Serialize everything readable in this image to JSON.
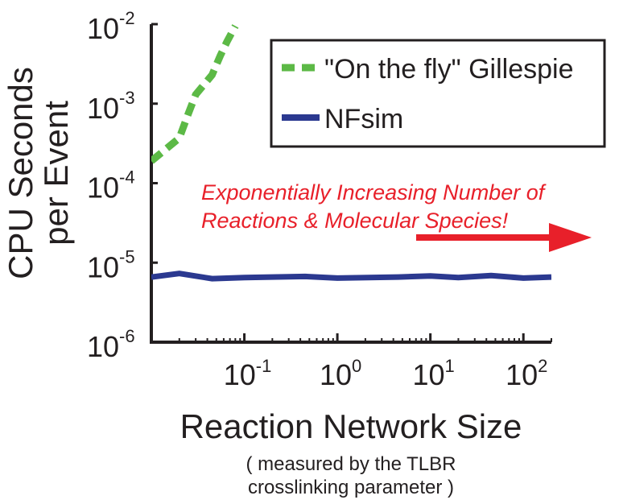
{
  "chart_data": {
    "type": "line",
    "x_scale": "log",
    "y_scale": "log",
    "xlim": [
      0.01,
      200
    ],
    "ylim": [
      1e-06,
      0.01
    ],
    "grid": false,
    "legend_position": "top-right",
    "ylabel_lines": [
      "CPU Seconds",
      "per Event"
    ],
    "xlabel": "Reaction Network Size",
    "x_ticks": [
      {
        "base": "10",
        "exp": "-1",
        "value": 0.1
      },
      {
        "base": "10",
        "exp": "0",
        "value": 1
      },
      {
        "base": "10",
        "exp": "1",
        "value": 10
      },
      {
        "base": "10",
        "exp": "2",
        "value": 100
      }
    ],
    "y_ticks": [
      {
        "base": "10",
        "exp": "-2",
        "value": 0.01
      },
      {
        "base": "10",
        "exp": "-3",
        "value": 0.001
      },
      {
        "base": "10",
        "exp": "-4",
        "value": 0.0001
      },
      {
        "base": "10",
        "exp": "-5",
        "value": 1e-05
      },
      {
        "base": "10",
        "exp": "-6",
        "value": 1e-06
      }
    ],
    "series": [
      {
        "name": "\"On the fly\" Gillespie",
        "color": "#5cb946",
        "style": "dashed",
        "x": [
          0.01,
          0.02,
          0.025,
          0.03,
          0.045,
          0.055,
          0.065,
          0.08
        ],
        "y": [
          0.00019,
          0.00037,
          0.00075,
          0.0013,
          0.0023,
          0.004,
          0.006,
          0.0095
        ]
      },
      {
        "name": "NFsim",
        "color": "#2b3990",
        "style": "solid",
        "x": [
          0.01,
          0.02,
          0.045,
          0.1,
          0.45,
          1,
          4.5,
          10,
          20,
          45,
          100,
          200
        ],
        "y": [
          6.6e-06,
          7.3e-06,
          6.3e-06,
          6.5e-06,
          6.7e-06,
          6.4e-06,
          6.6e-06,
          6.8e-06,
          6.5e-06,
          6.9e-06,
          6.4e-06,
          6.6e-06
        ]
      }
    ],
    "annotation": {
      "lines": [
        "Exponentially Increasing Number of",
        "Reactions & Molecular Species!"
      ],
      "color": "#e8202a"
    },
    "note_lines": [
      "( measured by the TLBR",
      "crosslinking parameter )"
    ]
  }
}
